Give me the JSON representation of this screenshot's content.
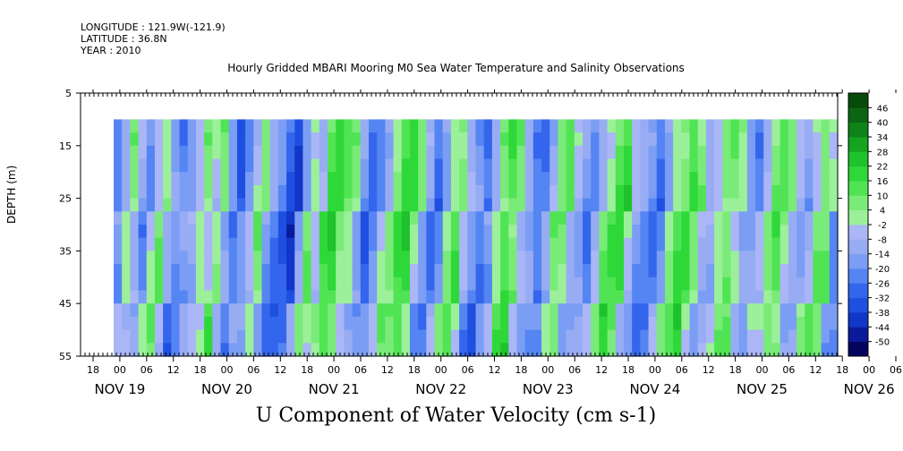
{
  "header": {
    "longitude": "LONGITUDE : 121.9W(-121.9)",
    "latitude": "LATITUDE : 36.8N",
    "year": "YEAR : 2010"
  },
  "chart_data": {
    "type": "heatmap",
    "title": "Hourly Gridded MBARI Mooring M0 Sea Water Temperature and Salinity Observations",
    "xlabel": "U Component of Water Velocity (cm s-1)",
    "ylabel": "DEPTH (m)",
    "ylim": [
      55,
      5
    ],
    "y_ticks": [
      5,
      15,
      25,
      35,
      45,
      55
    ],
    "data_depth_range": [
      10,
      55
    ],
    "x_hour_ticks": [
      "18",
      "00",
      "06",
      "12",
      "18",
      "00",
      "06",
      "12",
      "18",
      "00",
      "06",
      "12",
      "18",
      "00",
      "06",
      "12",
      "18",
      "00",
      "06",
      "12",
      "18",
      "00",
      "06",
      "12",
      "18",
      "00",
      "06",
      "12",
      "18",
      "00",
      "06",
      "12"
    ],
    "x_day_labels": [
      "NOV 19",
      "NOV 20",
      "NOV 21",
      "NOV 22",
      "NOV 23",
      "NOV 24",
      "NOV 25",
      "NOV 26"
    ],
    "colorbar": {
      "levels": [
        -50,
        -44,
        -38,
        -32,
        -26,
        -20,
        -14,
        -8,
        -2,
        4,
        10,
        16,
        22,
        28,
        34,
        40,
        46
      ],
      "colors": [
        "#04045e",
        "#0a1a9a",
        "#1236c8",
        "#1e4fe0",
        "#3366ec",
        "#5585f2",
        "#7b9ef4",
        "#98acf4",
        "#aab6f6",
        "#9cf09a",
        "#7aeb78",
        "#50e454",
        "#2ed838",
        "#1ec22c",
        "#14a420",
        "#0e8418",
        "#0a6612",
        "#064a0c"
      ]
    },
    "column_pattern": [
      -25,
      -14,
      4,
      -8,
      -18,
      -2,
      6,
      -14,
      -25,
      -20,
      -8,
      4,
      -2,
      10,
      -14,
      -30,
      -20,
      -8,
      4,
      -14,
      -22,
      -30,
      -36,
      -14,
      4,
      -8,
      12,
      16,
      8,
      4,
      -14,
      -26,
      -20,
      -8,
      4,
      14,
      16,
      4,
      -14,
      -26,
      -14,
      4,
      10,
      -8,
      -20,
      -30,
      -14,
      4,
      16,
      12,
      -8,
      -20,
      -26,
      -14,
      4,
      10,
      -8,
      -14,
      -20,
      -8,
      4,
      14,
      16,
      -8,
      -14,
      -20,
      -26,
      -14,
      4,
      10,
      16,
      4,
      -14,
      -8,
      4,
      10,
      4,
      -14,
      -20,
      -8,
      4,
      10,
      4,
      -8,
      -14,
      -2,
      10,
      4
    ]
  }
}
